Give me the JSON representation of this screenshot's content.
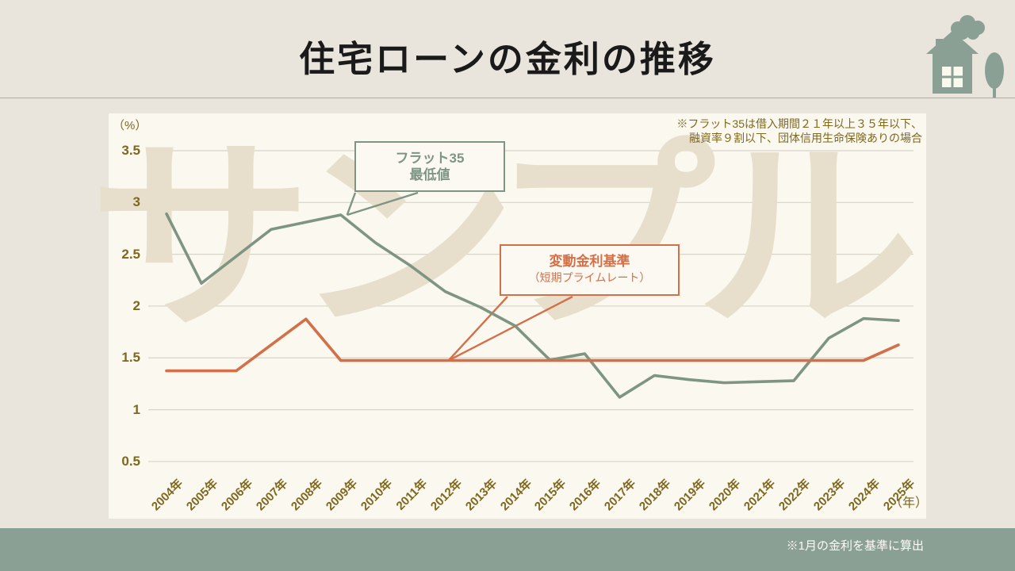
{
  "page": {
    "title": "住宅ローンの金利の推移",
    "watermark": "サンプル",
    "footer_note": "※1月の金利を基準に算出"
  },
  "chart": {
    "unit_label": "（%）",
    "year_axis_label": "（年）",
    "note_line1": "※フラット35は借入期間２１年以上３５年以下、",
    "note_line2": "融資率９割以下、団体信用生命保険ありの場合",
    "legend_flat35_line1": "フラット35",
    "legend_flat35_line2": "最低値",
    "legend_variable_line1": "変動金利基準",
    "legend_variable_line2": "（短期プライムレート）"
  },
  "colors": {
    "page_background": "#e9e4dc",
    "panel_background": "#faf8ef",
    "watermark": "#e7dfcb",
    "gridline": "#d8d4c9",
    "axis_text_gold": "#7f671d",
    "flat35_green": "#7e9584",
    "variable_orange": "#d2704a",
    "footer_bar_green": "#8ba095",
    "icon_green": "#8ba095"
  },
  "icons": [
    "cloud-icon",
    "house-icon",
    "tree-icon"
  ],
  "chart_data": {
    "type": "line",
    "title": "住宅ローンの金利の推移",
    "xlabel": "（年）",
    "ylabel": "（%）",
    "ylim": [
      0.5,
      3.5
    ],
    "yticks": [
      3.5,
      3,
      2.5,
      2,
      1.5,
      1,
      0.5
    ],
    "grid": true,
    "legend_position": "callout-boxes-inside-plot",
    "categories": [
      "2004年",
      "2005年",
      "2006年",
      "2007年",
      "2008年",
      "2009年",
      "2010年",
      "2011年",
      "2012年",
      "2013年",
      "2014年",
      "2015年",
      "2016年",
      "2017年",
      "2018年",
      "2019年",
      "2020年",
      "2021年",
      "2022年",
      "2023年",
      "2024年",
      "2025年"
    ],
    "series": [
      {
        "name": "フラット35最低値",
        "color": "#7e9584",
        "values": [
          2.89,
          2.22,
          2.48,
          2.74,
          2.81,
          2.88,
          2.61,
          2.39,
          2.14,
          1.99,
          1.81,
          1.48,
          1.54,
          1.12,
          1.33,
          1.29,
          1.26,
          1.27,
          1.28,
          1.69,
          1.88,
          1.86
        ]
      },
      {
        "name": "変動金利基準（短期プライムレート）",
        "color": "#d2704a",
        "values": [
          1.375,
          1.375,
          1.375,
          1.625,
          1.875,
          1.475,
          1.475,
          1.475,
          1.475,
          1.475,
          1.475,
          1.475,
          1.475,
          1.475,
          1.475,
          1.475,
          1.475,
          1.475,
          1.475,
          1.475,
          1.475,
          1.625
        ]
      }
    ],
    "annotations": [
      {
        "text": "フラット35最低値",
        "points_to_year": "2009年"
      },
      {
        "text": "変動金利基準（短期プライムレート）",
        "points_to_year": "2012年"
      }
    ]
  }
}
